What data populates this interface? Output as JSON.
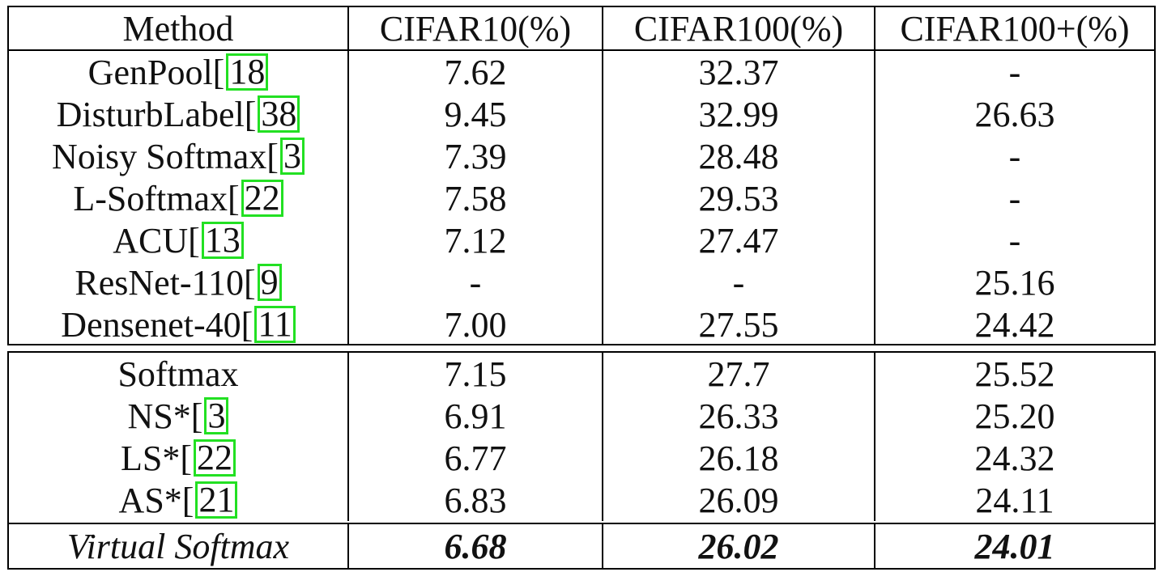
{
  "header": [
    "Method",
    "CIFAR10(%)",
    "CIFAR100(%)",
    "CIFAR100+(%)"
  ],
  "rows_top": [
    {
      "method": "GenPool",
      "ref": "18",
      "c10": "7.62",
      "c100": "32.37",
      "c100p": "-"
    },
    {
      "method": "DisturbLabel",
      "ref": "38",
      "c10": "9.45",
      "c100": "32.99",
      "c100p": "26.63"
    },
    {
      "method": "Noisy Softmax",
      "ref": "3",
      "c10": "7.39",
      "c100": "28.48",
      "c100p": "-"
    },
    {
      "method": "L-Softmax",
      "ref": "22",
      "c10": "7.58",
      "c100": "29.53",
      "c100p": "-"
    },
    {
      "method": "ACU",
      "ref": "13",
      "c10": "7.12",
      "c100": "27.47",
      "c100p": "-"
    },
    {
      "method": "ResNet-110",
      "ref": "9",
      "c10": "-",
      "c100": "-",
      "c100p": "25.16"
    },
    {
      "method": "Densenet-40",
      "ref": "11",
      "c10": "7.00",
      "c100": "27.55",
      "c100p": "24.42"
    }
  ],
  "rows_bottom": [
    {
      "method": "Softmax",
      "ref": "",
      "c10": "7.15",
      "c100": "27.7",
      "c100p": "25.52"
    },
    {
      "method": "NS*",
      "ref": "3",
      "c10": "6.91",
      "c100": "26.33",
      "c100p": "25.20"
    },
    {
      "method": "LS*",
      "ref": "22",
      "c10": "6.77",
      "c100": "26.18",
      "c100p": "24.32"
    },
    {
      "method": "AS*",
      "ref": "21",
      "c10": "6.83",
      "c100": "26.09",
      "c100p": "24.11"
    }
  ],
  "final_row": {
    "method": "Virtual Softmax",
    "c10": "6.68",
    "c100": "26.02",
    "c100p": "24.01"
  },
  "colors": {
    "ref_box": "#22e022",
    "rule": "#000000"
  }
}
